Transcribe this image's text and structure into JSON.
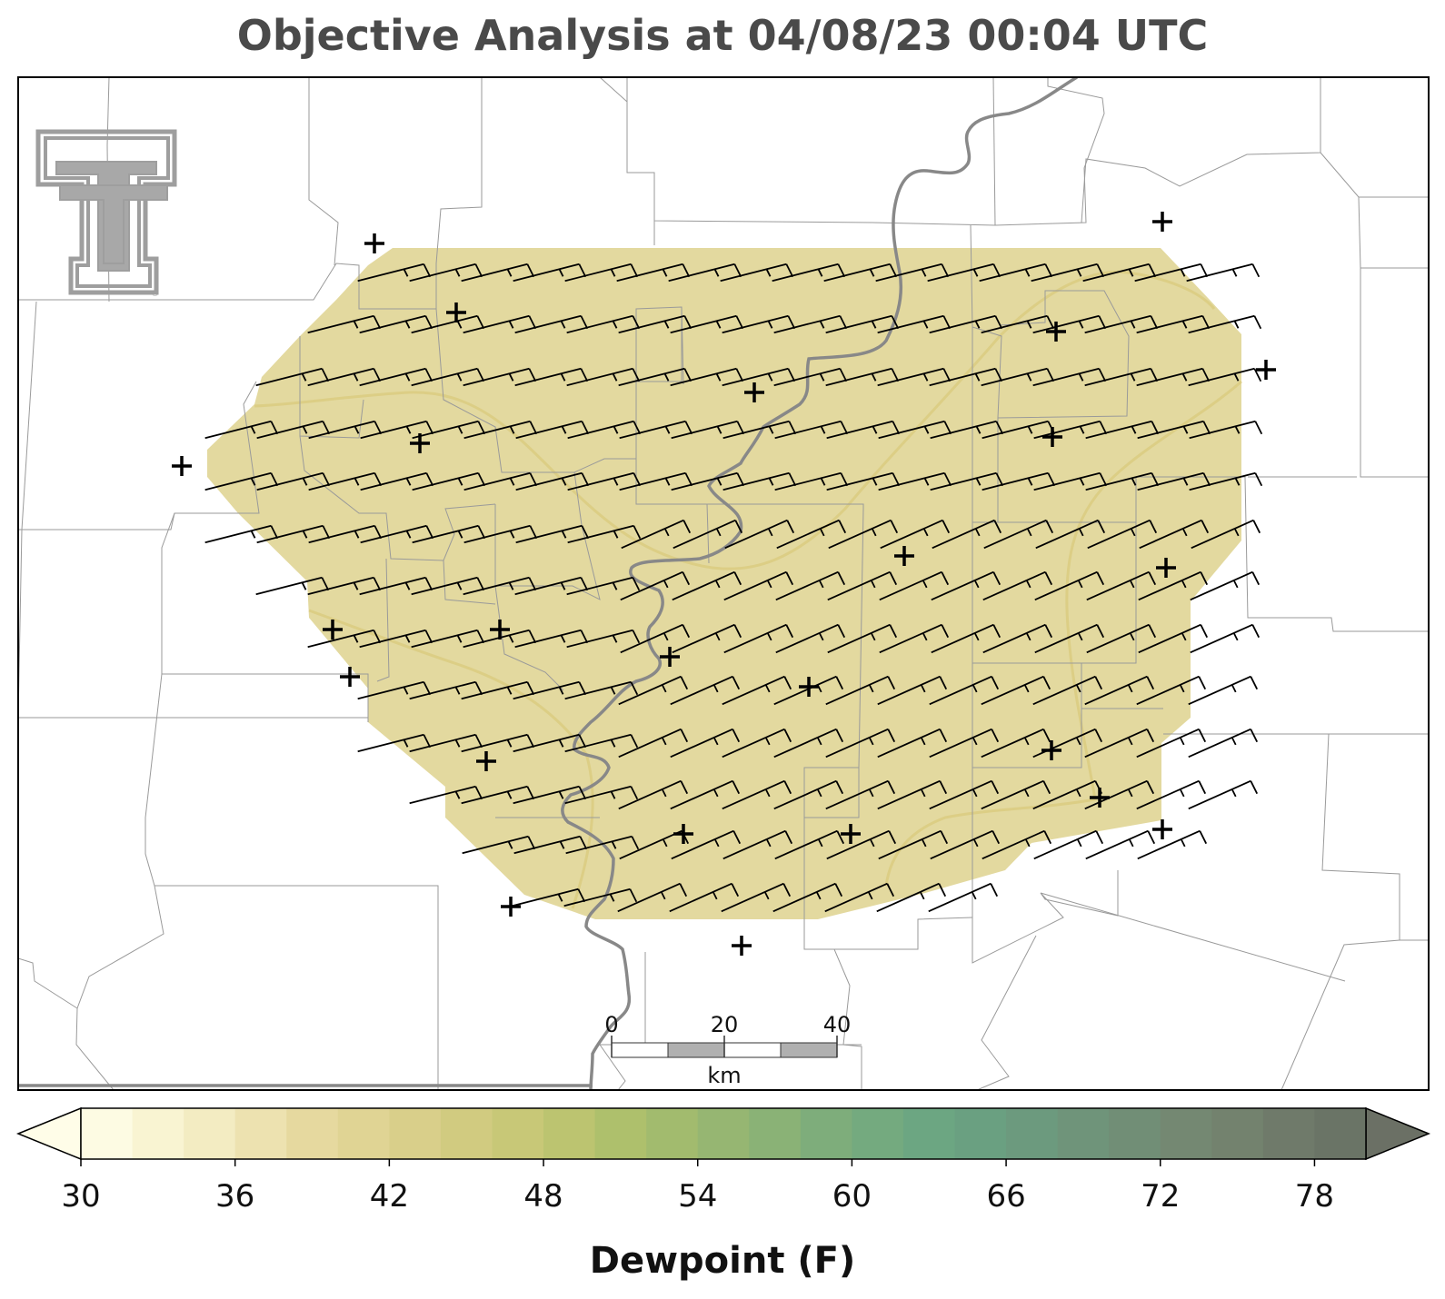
{
  "title": "Objective Analysis at 04/08/23 00:04 UTC",
  "colorbar": {
    "label": "Dewpoint (F)",
    "min": 30,
    "max": 80,
    "step": 2,
    "ticks": [
      30,
      36,
      42,
      48,
      54,
      60,
      66,
      72,
      78
    ],
    "colors": [
      "#fdfbe3",
      "#f9f4d2",
      "#f3ecc2",
      "#ede2b0",
      "#e6d99f",
      "#e0d494",
      "#d9cf8a",
      "#d1cb80",
      "#c8c877",
      "#bcc470",
      "#aec06c",
      "#a2bb6e",
      "#96b672",
      "#8ab276",
      "#7ead7b",
      "#74aa7f",
      "#6ca682",
      "#6aa081",
      "#6c9a7e",
      "#6f947a",
      "#718e76",
      "#748872",
      "#73826e",
      "#6f7a6a",
      "#6a7466"
    ],
    "under_color": "#fffde8",
    "over_color": "#6b7065"
  },
  "map": {
    "field_color": "#e2d79a",
    "contour_color": "#d9c97a",
    "wind_barb_value_kt": 10,
    "station_marker": "plus-icon"
  },
  "scale_bar": {
    "labels": [
      "0",
      "20",
      "40"
    ],
    "unit": "km"
  },
  "logo": {
    "name": "texas-tech-double-t-logo"
  }
}
